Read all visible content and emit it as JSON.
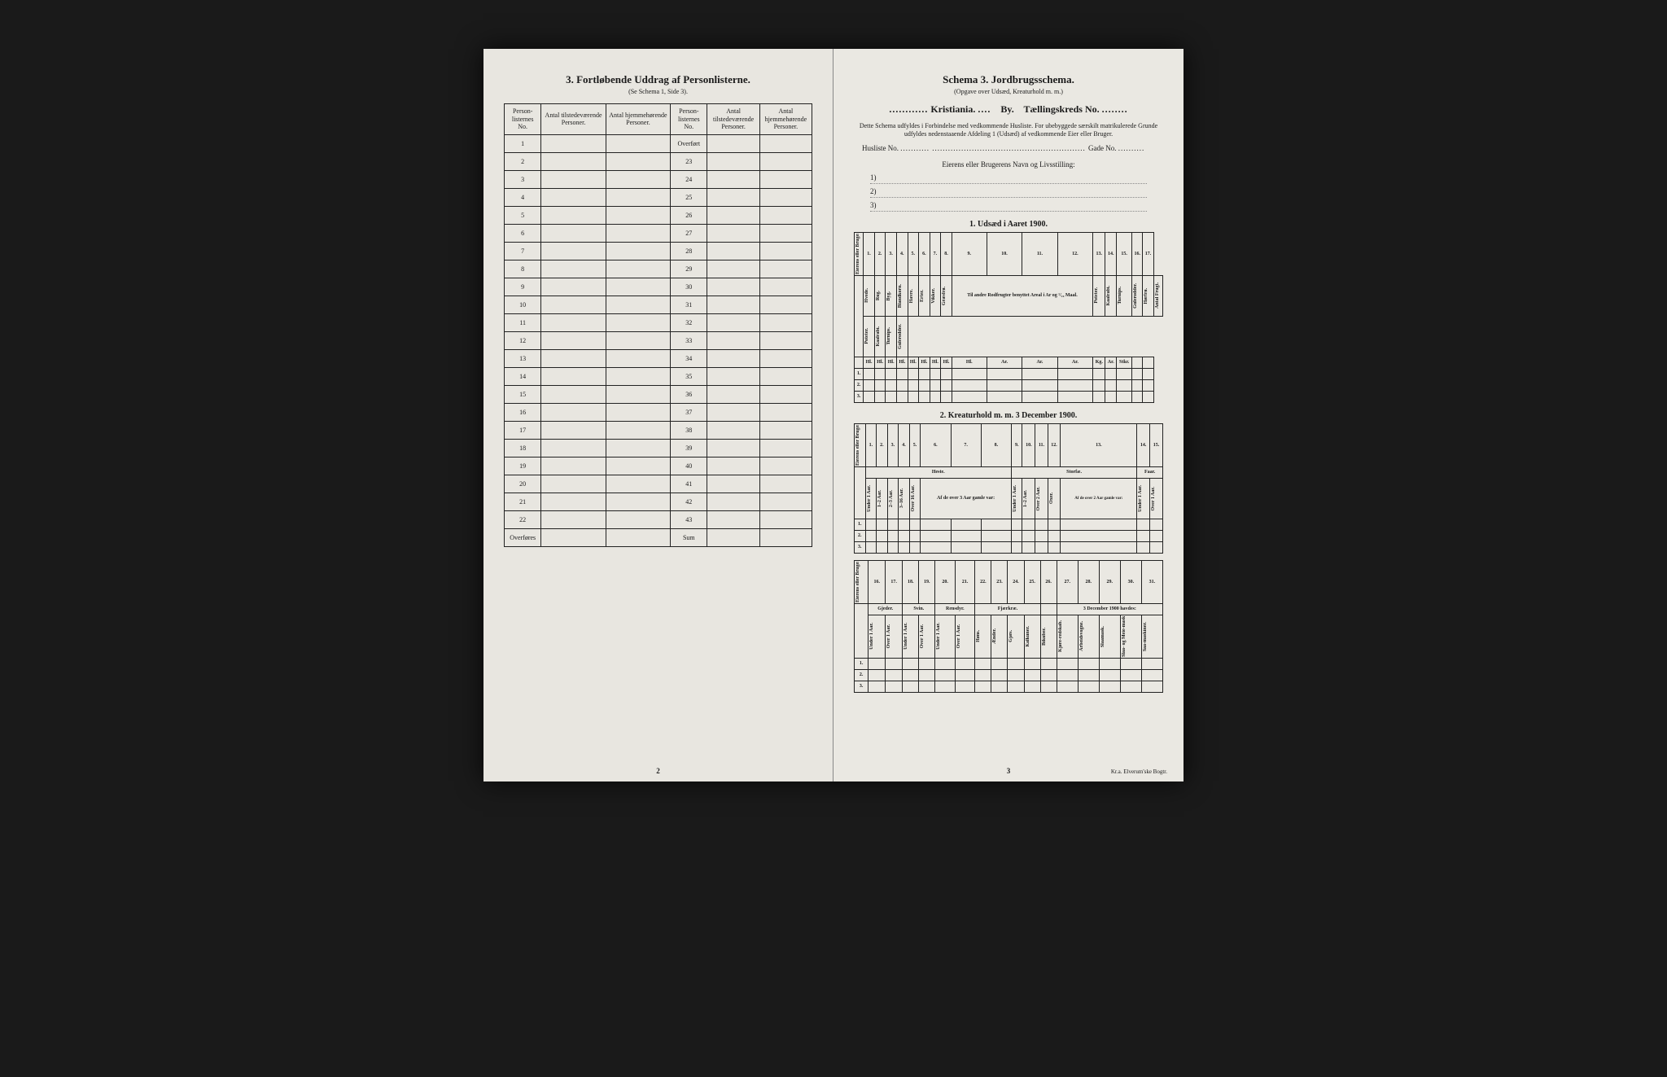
{
  "left_page": {
    "title_num": "3.",
    "title": "Fortløbende Uddrag af Personlisterne.",
    "subtitle": "(Se Schema 1, Side 3).",
    "headers": {
      "col1": "Person-listernes No.",
      "col2": "Antal tilstedeværende Personer.",
      "col3": "Antal hjemmehørende Personer.",
      "col4": "Person-listernes No.",
      "col5": "Antal tilstedeværende Personer.",
      "col6": "Antal hjemmehørende Personer."
    },
    "left_rows": [
      "1",
      "2",
      "3",
      "4",
      "5",
      "6",
      "7",
      "8",
      "9",
      "10",
      "11",
      "12",
      "13",
      "14",
      "15",
      "16",
      "17",
      "18",
      "19",
      "20",
      "21",
      "22",
      "Overføres"
    ],
    "right_rows": [
      "Overført",
      "23",
      "24",
      "25",
      "26",
      "27",
      "28",
      "29",
      "30",
      "31",
      "32",
      "33",
      "34",
      "35",
      "36",
      "37",
      "38",
      "39",
      "40",
      "41",
      "42",
      "43",
      "Sum"
    ],
    "page_num": "2"
  },
  "right_page": {
    "title_prefix": "Schema 3.",
    "title": "Jordbrugsschema.",
    "subtitle": "(Opgave over Udsæd, Kreaturhold m. m.)",
    "city": "Kristiania.",
    "by_label": "By.",
    "kreds_label": "Tællingskreds No.",
    "instruction": "Dette Schema udfyldes i Forbindelse med vedkommende Husliste. For ubebyggede særskilt matrikulerede Grunde udfyldes nedenstaaende Afdeling 1 (Udsæd) af vedkommende Eier eller Bruger.",
    "husliste_label": "Husliste No.",
    "gade_label": "Gade No.",
    "owner_title": "Eierens eller Brugerens Navn og Livsstilling:",
    "owner_nums": [
      "1)",
      "2)",
      "3)"
    ],
    "section1_title": "1. Udsæd i Aaret 1900.",
    "section2_title": "2. Kreaturhold m. m. 3 December 1900.",
    "table1": {
      "col_nums": [
        "1.",
        "2.",
        "3.",
        "4.",
        "5.",
        "6.",
        "7.",
        "8.",
        "9.",
        "10.",
        "11.",
        "12.",
        "13.",
        "14.",
        "15.",
        "16.",
        "17."
      ],
      "row_header": "Eierens eller Brugerens Numer.",
      "crops": [
        "Hvede.",
        "Rug.",
        "Byg.",
        "Blandkorn.",
        "Havre.",
        "Erter.",
        "Vikker.",
        "Græsfrø.",
        "Poteter.",
        "Kaalrabi.",
        "Turnips.",
        "Gulerodder.",
        "Hørfrø.",
        "Antal Frugt."
      ],
      "group_header": "Til andre Rodfrugter benyttet Areal i Ar og ¹/₁₀ Maal.",
      "units": [
        "Hl.",
        "Hl.",
        "Hl.",
        "Hl.",
        "Hl.",
        "Hl.",
        "Hl.",
        "Hl.",
        "Hl.",
        "Ar.",
        "Ar.",
        "Ar.",
        "Kg.",
        "Ar.",
        "Stkr."
      ],
      "rows": [
        "1.",
        "2.",
        "3."
      ]
    },
    "table2a": {
      "col_nums": [
        "1.",
        "2.",
        "3.",
        "4.",
        "5.",
        "6.",
        "7.",
        "8.",
        "9.",
        "10.",
        "11.",
        "12.",
        "13.",
        "14.",
        "15."
      ],
      "row_header": "Eierens eller Brugerens Numer.",
      "groups": {
        "heste": "Heste.",
        "storfae": "Storfæ.",
        "faar": "Faar."
      },
      "heste_cols": [
        "Under 1 Aar.",
        "1–2 Aar.",
        "2–3 Aar.",
        "3–16 Aar.",
        "Over 16 Aar."
      ],
      "heste_sub": "Af de over 3 Aar gamle var:",
      "heste_sub_cols": [
        "Hingste.",
        "Valakker.",
        "Hopper."
      ],
      "storfae_cols": [
        "Under 1 Aar.",
        "1–2 Aar.",
        "Over 2 Aar.",
        "Oxer."
      ],
      "storfae_sub": "Af de over 2 Aar gamle var:",
      "storfae_sub_cols": [
        "Kjør."
      ],
      "faar_cols": [
        "Under 1 Aar.",
        "Over 1 Aar."
      ],
      "rows": [
        "1.",
        "2.",
        "3."
      ]
    },
    "table2b": {
      "col_nums": [
        "16.",
        "17.",
        "18.",
        "19.",
        "20.",
        "21.",
        "22.",
        "23.",
        "24.",
        "25.",
        "26.",
        "27.",
        "28.",
        "29.",
        "30.",
        "31."
      ],
      "row_header": "Eierens eller Brugerens Numer.",
      "groups": {
        "gjeder": "Gjeder.",
        "svin": "Svin.",
        "rensdyr": "Rensdyr.",
        "fjaerkrae": "Fjærkræ.",
        "dec": "3 December 1900 havdes:"
      },
      "gjeder_cols": [
        "Under 1 Aar.",
        "Over 1 Aar."
      ],
      "svin_cols": [
        "Under 1 Aar.",
        "Over 1 Aar."
      ],
      "rensdyr_cols": [
        "Under 1 Aar.",
        "Over 1 Aar."
      ],
      "fjaerkrae_cols": [
        "Høns.",
        "Ænder.",
        "Gjæs.",
        "Kalkuner."
      ],
      "other_cols": [
        "Bikuber."
      ],
      "dec_cols": [
        "Kjøre-redskab.",
        "Arbeidsvogne.",
        "Slaamask.",
        "Slaa- og Meie-maskiner.",
        "Saa-maskiner."
      ],
      "rows": [
        "1.",
        "2.",
        "3."
      ]
    },
    "page_num": "3",
    "printer": "Kr.a. Elverum'ske Bogtr."
  }
}
